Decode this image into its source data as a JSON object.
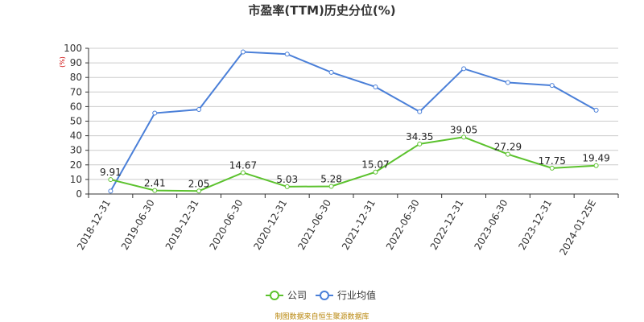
{
  "chart_data": {
    "type": "line",
    "title": "市盈率(TTM)历史分位(%)",
    "unit_label": "(%)",
    "ylim": [
      0,
      100
    ],
    "yticks": [
      0,
      10,
      20,
      30,
      40,
      50,
      60,
      70,
      80,
      90,
      100
    ],
    "grid": true,
    "legend_position": "bottom",
    "categories": [
      "2018-12-31",
      "2019-06-30",
      "2019-12-31",
      "2020-06-30",
      "2020-12-31",
      "2021-06-30",
      "2021-12-31",
      "2022-06-30",
      "2022-12-31",
      "2023-06-30",
      "2023-12-31",
      "2024-01-25E"
    ],
    "series": [
      {
        "name": "公司",
        "color": "#5cc22e",
        "values": [
          9.91,
          2.41,
          2.05,
          14.67,
          5.03,
          5.28,
          15.07,
          34.35,
          39.05,
          27.29,
          17.75,
          19.49
        ],
        "labels": [
          "9.91",
          "2.41",
          "2.05",
          "14.67",
          "5.03",
          "5.28",
          "15.07",
          "34.35",
          "39.05",
          "27.29",
          "17.75",
          "19.49"
        ]
      },
      {
        "name": "行业均值",
        "color": "#4a7fd8",
        "values": [
          2,
          55.5,
          58,
          97.5,
          96,
          83.5,
          73.5,
          56.5,
          86,
          76.5,
          74.5,
          57.5
        ]
      }
    ]
  },
  "source_note": "制图数据来自恒生聚源数据库"
}
